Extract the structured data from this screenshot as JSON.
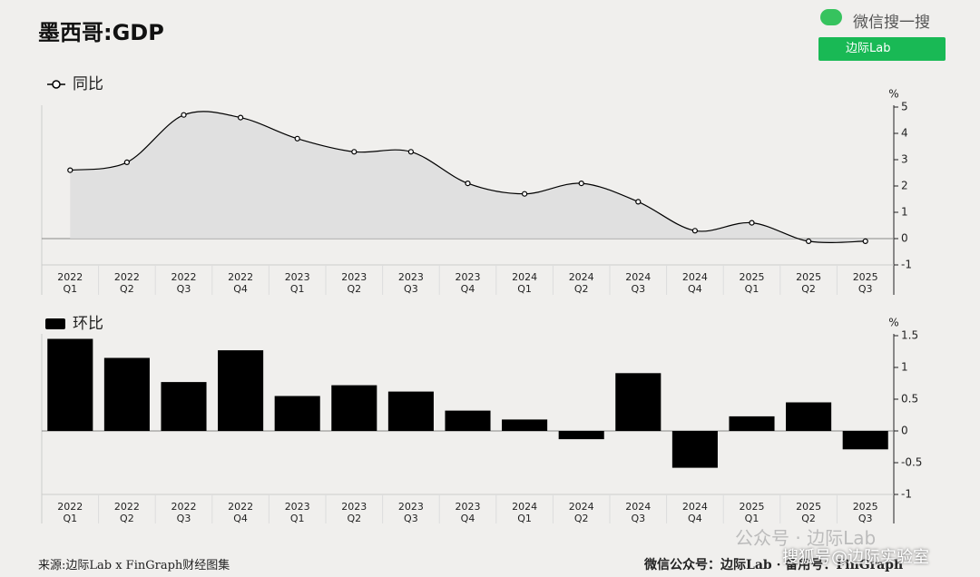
{
  "page": {
    "title": "墨西哥:GDP",
    "search_label": "微信搜一搜",
    "search_button": "边际Lab",
    "source": "来源:边际Lab x FinGraph财经图集",
    "footer": "微信公众号：边际Lab · 备用号：FinGraph",
    "watermark": "公众号 · 边际Lab",
    "watermark2": "搜狐号@边际实验室"
  },
  "chart_data": [
    {
      "type": "line",
      "series": [
        {
          "name": "同比",
          "color": "#000000",
          "values": [
            2.6,
            2.9,
            4.7,
            4.6,
            3.8,
            3.3,
            3.3,
            2.1,
            1.7,
            2.1,
            1.4,
            0.3,
            0.6,
            -0.1,
            -0.1
          ]
        }
      ],
      "categories": [
        "2022\nQ1",
        "2022\nQ2",
        "2022\nQ3",
        "2022\nQ4",
        "2023\nQ1",
        "2023\nQ2",
        "2023\nQ3",
        "2023\nQ4",
        "2024\nQ1",
        "2024\nQ2",
        "2024\nQ3",
        "2024\nQ4",
        "2025\nQ1",
        "2025\nQ2",
        "2025\nQ3"
      ],
      "y_unit": "%",
      "ylim": [
        -1,
        5
      ],
      "yticks": [
        -1,
        0,
        1,
        2,
        3,
        4,
        5
      ]
    },
    {
      "type": "bar",
      "series": [
        {
          "name": "环比",
          "color": "#000000",
          "values": [
            1.45,
            1.15,
            0.77,
            1.27,
            0.55,
            0.72,
            0.62,
            0.32,
            0.18,
            -0.13,
            0.91,
            -0.58,
            0.23,
            0.45,
            -0.29
          ]
        }
      ],
      "categories": [
        "2022\nQ1",
        "2022\nQ2",
        "2022\nQ3",
        "2022\nQ4",
        "2023\nQ1",
        "2023\nQ2",
        "2023\nQ3",
        "2023\nQ4",
        "2024\nQ1",
        "2024\nQ2",
        "2024\nQ3",
        "2024\nQ4",
        "2025\nQ1",
        "2025\nQ2",
        "2025\nQ3"
      ],
      "y_unit": "%",
      "ylim": [
        -1,
        1.5
      ],
      "yticks": [
        -1,
        -0.5,
        0,
        0.5,
        1,
        1.5
      ]
    }
  ]
}
